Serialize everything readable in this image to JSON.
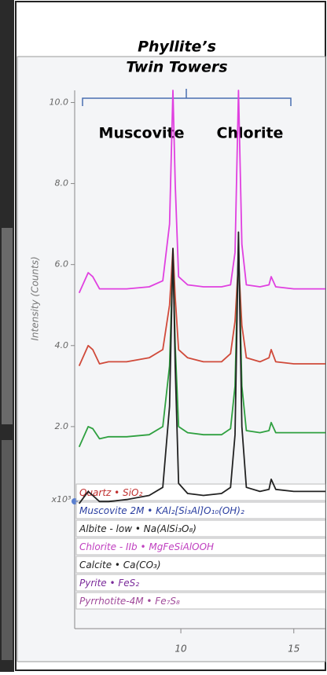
{
  "chart_data": {
    "type": "line",
    "title_lines": [
      "Phyllite’s",
      "Twin Towers"
    ],
    "annotations": [
      "Muscovite",
      "Chlorite"
    ],
    "y_label": "Intensity (Counts)",
    "y_multiplier": "x10³",
    "x": [
      5.5,
      5.9,
      6.1,
      6.4,
      6.8,
      7.6,
      8.6,
      9.2,
      9.5,
      9.65,
      9.75,
      9.9,
      10.3,
      11.0,
      11.8,
      12.2,
      12.4,
      12.55,
      12.7,
      12.9,
      13.5,
      13.9,
      14.0,
      14.2,
      15.0,
      16.4
    ],
    "series": [
      {
        "color": "#e040e0",
        "values": [
          5.3,
          5.8,
          5.7,
          5.4,
          5.4,
          5.4,
          5.45,
          5.6,
          7.0,
          10.3,
          8.0,
          5.7,
          5.5,
          5.45,
          5.45,
          5.5,
          6.3,
          10.3,
          6.5,
          5.5,
          5.45,
          5.5,
          5.7,
          5.45,
          5.4,
          5.4
        ]
      },
      {
        "color": "#d04a3a",
        "values": [
          3.5,
          4.0,
          3.9,
          3.55,
          3.6,
          3.6,
          3.7,
          3.9,
          5.0,
          6.4,
          5.2,
          3.9,
          3.7,
          3.6,
          3.6,
          3.8,
          4.6,
          6.1,
          4.5,
          3.7,
          3.6,
          3.7,
          3.9,
          3.6,
          3.55,
          3.55
        ]
      },
      {
        "color": "#2fa040",
        "values": [
          1.5,
          2.0,
          1.95,
          1.7,
          1.75,
          1.75,
          1.8,
          2.0,
          3.5,
          6.2,
          4.0,
          2.0,
          1.85,
          1.8,
          1.8,
          1.95,
          3.0,
          6.5,
          3.0,
          1.9,
          1.85,
          1.9,
          2.1,
          1.85,
          1.85,
          1.85
        ]
      },
      {
        "color": "#222222",
        "values": [
          0.1,
          0.4,
          0.3,
          0.15,
          0.15,
          0.2,
          0.3,
          0.5,
          2.5,
          6.4,
          3.5,
          0.6,
          0.35,
          0.3,
          0.35,
          0.5,
          1.8,
          6.8,
          2.0,
          0.5,
          0.4,
          0.45,
          0.7,
          0.45,
          0.4,
          0.4
        ]
      }
    ],
    "xlim": [
      5.3,
      16.4
    ],
    "xticks": [
      10,
      15
    ],
    "ylim": [
      0,
      10.3
    ],
    "yticks": [
      {
        "value": 2,
        "label": "2.0"
      },
      {
        "value": 4,
        "label": "4.0"
      },
      {
        "value": 6,
        "label": "6.0"
      },
      {
        "value": 8,
        "label": "8.0"
      },
      {
        "value": 10,
        "label": "10.0"
      }
    ],
    "phases": [
      {
        "label": "Quartz • SiO₂",
        "color": "#c03030"
      },
      {
        "label": "Muscovite 2M • KAl₂[Si₃Al]O₁₀(OH)₂",
        "color": "#2a3ea0"
      },
      {
        "label": "Albite - low • Na(AlSi₃O₈)",
        "color": "#222222"
      },
      {
        "label": "Chlorite - IIb • MgFeSiAlOOH",
        "color": "#c040c0"
      },
      {
        "label": "Calcite • Ca(CO₃)",
        "color": "#222222"
      },
      {
        "label": "Pyrite • FeS₂",
        "color": "#7a2a9a"
      },
      {
        "label": "Pyrrhotite-4M • Fe₇S₈",
        "color": "#a04a9a"
      }
    ]
  }
}
